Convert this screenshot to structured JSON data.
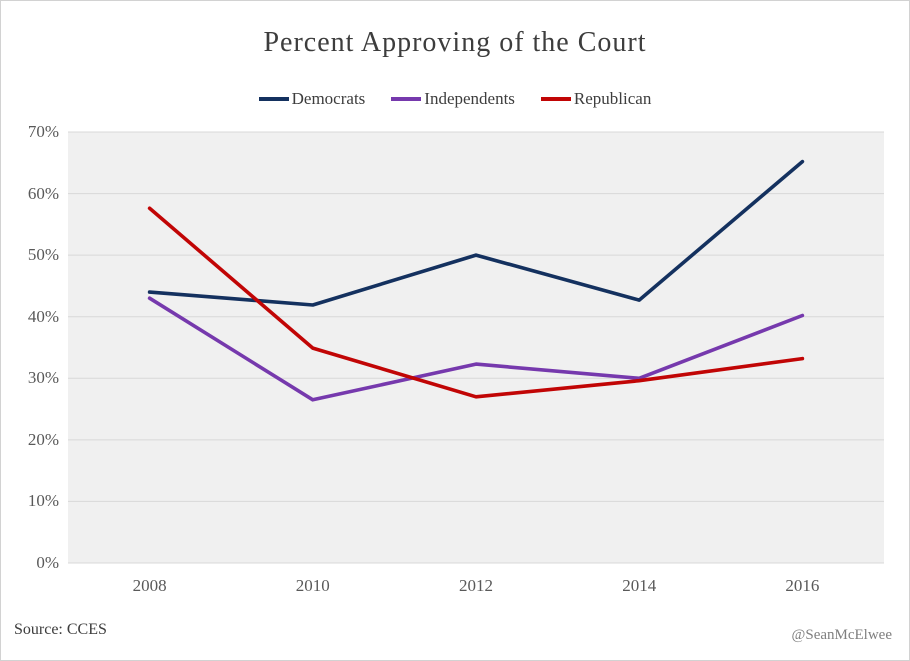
{
  "chart_data": {
    "type": "line",
    "title": "Percent Approving of the Court",
    "categories": [
      "2008",
      "2010",
      "2012",
      "2014",
      "2016"
    ],
    "series": [
      {
        "name": "Democrats",
        "color": "#14315f",
        "values": [
          44,
          41.9,
          50,
          42.7,
          65.2
        ]
      },
      {
        "name": "Independents",
        "color": "#7639ad",
        "values": [
          43,
          26.5,
          32.3,
          30,
          40.2
        ]
      },
      {
        "name": "Republican",
        "color": "#c10505",
        "values": [
          57.6,
          34.9,
          27,
          29.6,
          33.2
        ]
      }
    ],
    "xlabel": "",
    "ylabel": "",
    "ylim": [
      0,
      70
    ],
    "ytick_values": [
      70,
      60,
      50,
      40,
      30,
      20,
      10,
      0
    ],
    "ytick_labels": [
      "70%",
      "60%",
      "50%",
      "40%",
      "30%",
      "20%",
      "10%",
      "0%"
    ],
    "grid": true,
    "legend_position": "top",
    "plot_background": "#f0f0f0",
    "gridline_color": "#d8d8d8"
  },
  "footer": {
    "source": "Source: CCES",
    "watermark": "@SeanMcElwee"
  }
}
